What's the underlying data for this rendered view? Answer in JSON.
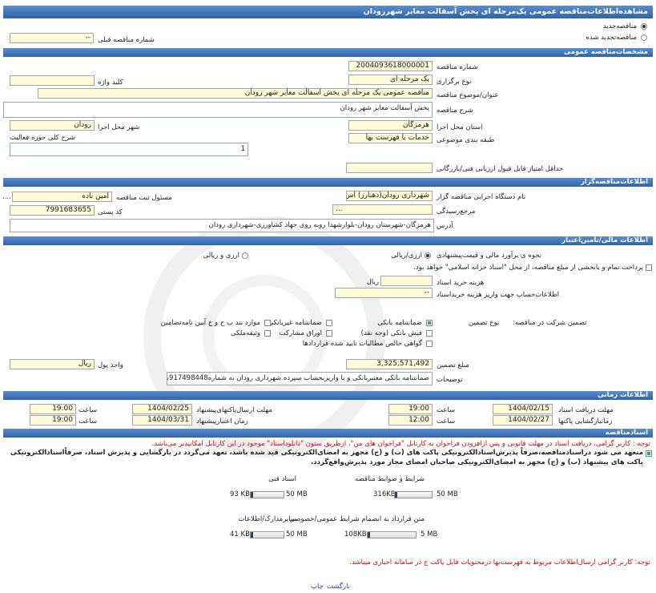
{
  "header": {
    "title": "مشاهده‌اطلاعات‌مناقصه عمومی یک‌مرحله ای پخش آسفالت معابر شهررودان"
  },
  "tender_kind": {
    "new": "مناقصه‌جدید",
    "renewed": "مناقصه‌تجدید شده",
    "previous_number_label": "شماره مناقصه قبلی",
    "previous_number": "--"
  },
  "general": {
    "section_title": "مشخصات‌مناقصه عمومی",
    "tender_number": {
      "label": "شماره مناقصه",
      "value": "2004093618000001"
    },
    "holding_type": {
      "label": "نوع برگزاری",
      "value": "یک مرحله ای"
    },
    "keyword": {
      "label": "کلید واژه"
    },
    "subject": {
      "label": "عنوان/موضوع مناقصه",
      "value": "مناقصه عمومی یک مرحله ای پخش آسفالت معابر شهر رودان"
    },
    "description": {
      "label": "شرح مناقصه",
      "value": "پخش آسفالت معابر شهر رودان"
    },
    "province": {
      "label": "استان محل اجرا",
      "value": "هرمزگان"
    },
    "city": {
      "label": "شهر محل اجرا",
      "value": "رودان"
    },
    "classification": {
      "label": "طبقه بندی موضوعی",
      "value": "خدمات با فهرست بها"
    },
    "activity_scope": {
      "label": "شرح کلی حوزه فعالیت",
      "value": "1"
    },
    "min_score": {
      "label": "حداقل امتیاز قابل قبول ارزیابی فنی/بازرگانی"
    }
  },
  "organizer": {
    "section_title": "اطلاعات‌مناقصه‌گزار",
    "agency": {
      "label": "نام دستگاه اجرایی مناقصه گزار",
      "value": "شهرداری رودان(دهبارز) اس"
    },
    "registrar": {
      "label": "مسئول ثبت مناقصه",
      "value": "امین باده",
      "more": "...."
    },
    "authority": {
      "label": "مرجع‌رسیدگی",
      "value": "..."
    },
    "postal_code": {
      "label": "کد پستی",
      "value": "7991683655"
    },
    "address": {
      "label": "آدرس",
      "value": "هرمزگان-شهرستان رودان-بلوارشهدا روبه روی جهاد کشاورزی-شهرداری رودان"
    }
  },
  "financial": {
    "section_title": "اطلاعات مالی/تامین‌اعتبار",
    "estimate": {
      "label": "نحوه ی برآورد مالی و قیمت‌پیشنهادی",
      "option_1": "ارزی/ریالی",
      "option_2": "ارزی و ریالی"
    },
    "treasury_note": "پرداخت تمام و یابخشی از مبلغ مناقصه، از محل \"اسناد خزانه اسلامی\" خواهد بود.",
    "document_fee": {
      "label": "هزینه خرید اسناد",
      "unit": "ریال"
    },
    "account": {
      "label": "اطلاعات‌حساب جهت واریز هزینه خریداسناد",
      "value": "--"
    },
    "guarantee": {
      "label": "تضمین شرکت در مناقصه:",
      "type_label": "نوع تضمین",
      "options": [
        "ضمانتنامه بانکی",
        "ضمانتنامه غیربانکی",
        "موارد بند ب ح و خ آیین نامه‌تضامین",
        "فیش بانکی (وجه نقد)",
        "اوراق مشارکت",
        "وثیقه‌ملکی",
        "گواهی خالص مطالبات تایید شده قراردادها"
      ]
    },
    "amount": {
      "label": "مبلغ تضمین",
      "value": "3,325,571,492"
    },
    "currency": {
      "label": "واحد پول",
      "value": "ریال"
    },
    "notes": {
      "label": "توضیحات",
      "value": "ضمانتنامه بانکی معتبربانکی و یا واریزبحساب سپرده شهرداری رودان به شماره917498448باشد"
    }
  },
  "timing": {
    "section_title": "اطلاعات زمانی",
    "hour_label": "ساعت",
    "receive_docs": {
      "label": "مهلت دریافت اسناد",
      "date": "1404/02/15",
      "time": "19:00"
    },
    "send_offers": {
      "label": "مهلت ارسال‌پاکتهای‌پیشنهاد",
      "date": "1404/02/25",
      "time": "19:00"
    },
    "opening": {
      "label": "زمانبازگشایی پاکتها",
      "date": "1404/02/27",
      "time": "12:00"
    },
    "validity": {
      "label": "زمان اعتبارپیشنهاد",
      "date": "1404/03/31",
      "time": "19:00"
    }
  },
  "documents": {
    "section_title": "اسنادمناقصه",
    "note_1": "توجه : کاربر گرامی، دریافت اسناد در مهلت قانونی و پس ازافزودن فراخوان به کارتابل \"فراخوان های من\"، ازطریق ستون \"دانلوداسناد\" موجود در این کارتابل امکانپذیر می‌باشد.",
    "commitment": "متعهد می شود دراسنادمناقصه،صرفاً پذیرش‌اسنادالکترونیکی پاکت های (ب) و (ج) مجهز به امضای‌الکترونیکی قید شده باشد، تعهد می‌گردد در بازگشایی و پذیرش اسناد، صرفاً‌اسنادالکترونیکی پاکت های پیشنهاد (ب) و (ج) مجهز به امضای‌الکترونیکی صاحبان امضای مجاز مورد پذیرش‌واقع‌گردد.",
    "files": [
      {
        "title": "شرایط و ضوابط مناقصه",
        "size": "316KB",
        "max": "50 MB"
      },
      {
        "title": "اسناد فنی",
        "size": "93 KB",
        "max": "50 MB"
      },
      {
        "title": "متن قرارداد به انضمام شرایط عمومی/خصوصی",
        "size": "108KB",
        "max": "5 MB"
      },
      {
        "title": "سایرمدارک/اطلاعات",
        "size": "41 KB",
        "max": "50 MB"
      }
    ],
    "note_2": "توجه: کاربر گرامی ارسال‌اطلاعات مربوط به فهرست‌بها درمحتویات فایل پاکت ج در سامانه اجباری میباشد."
  },
  "footer": {
    "print": "چاپ",
    "back": "بارگشت"
  }
}
